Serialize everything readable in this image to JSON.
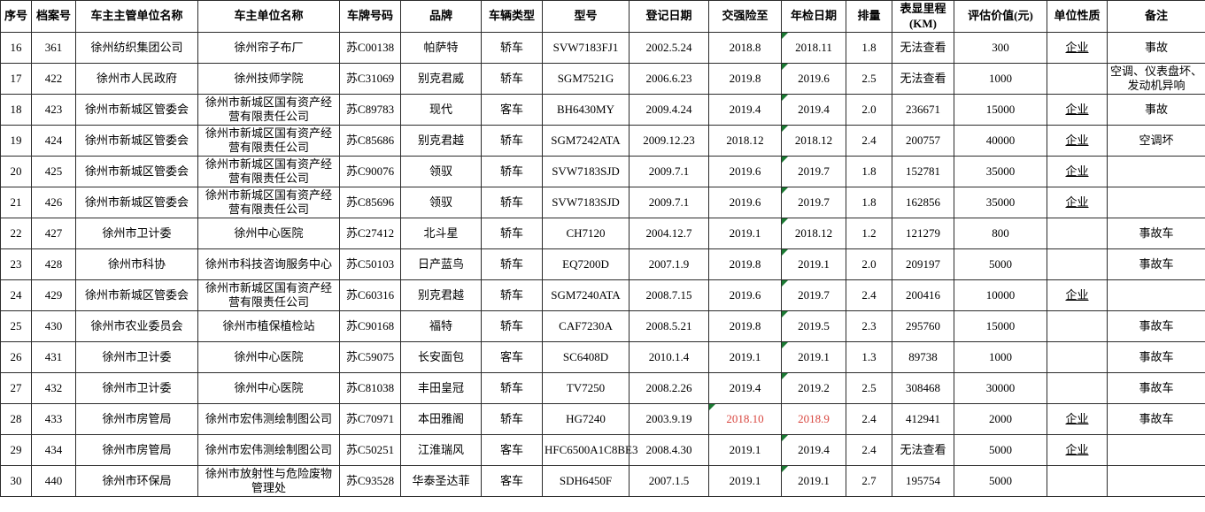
{
  "table": {
    "columns": [
      {
        "key": "seq",
        "label": "序号"
      },
      {
        "key": "file-no",
        "label": "档案号"
      },
      {
        "key": "supervisor-unit",
        "label": "车主主管单位名称"
      },
      {
        "key": "owner-unit",
        "label": "车主单位名称"
      },
      {
        "key": "plate-no",
        "label": "车牌号码"
      },
      {
        "key": "brand",
        "label": "品牌"
      },
      {
        "key": "vehicle-type",
        "label": "车辆类型"
      },
      {
        "key": "model",
        "label": "型号"
      },
      {
        "key": "register-date",
        "label": "登记日期"
      },
      {
        "key": "insurance-until",
        "label": "交强险至"
      },
      {
        "key": "inspection-date",
        "label": "年检日期"
      },
      {
        "key": "displacement",
        "label": "排量"
      },
      {
        "key": "mileage",
        "label": "表显里程\n(KM)"
      },
      {
        "key": "assessed-value",
        "label": "评估价值(元)"
      },
      {
        "key": "unit-nature",
        "label": "单位性质"
      },
      {
        "key": "remark",
        "label": "备注"
      }
    ],
    "rows": [
      [
        "16",
        "361",
        "徐州纺织集团公司",
        "徐州帘子布厂",
        "苏C00138",
        "帕萨特",
        "轿车",
        "SVW7183FJ1",
        "2002.5.24",
        "2018.8",
        "2018.11",
        "1.8",
        "无法查看",
        "300",
        "企业",
        "事故"
      ],
      [
        "17",
        "422",
        "徐州市人民政府",
        "徐州技师学院",
        "苏C31069",
        "别克君威",
        "轿车",
        "SGM7521G",
        "2006.6.23",
        "2019.8",
        "2019.6",
        "2.5",
        "无法查看",
        "1000",
        "",
        "空调、仪表盘坏、发动机异响"
      ],
      [
        "18",
        "423",
        "徐州市新城区管委会",
        "徐州市新城区国有资产经营有限责任公司",
        "苏C89783",
        "现代",
        "客车",
        "BH6430MY",
        "2009.4.24",
        "2019.4",
        "2019.4",
        "2.0",
        "236671",
        "15000",
        "企业",
        "事故"
      ],
      [
        "19",
        "424",
        "徐州市新城区管委会",
        "徐州市新城区国有资产经营有限责任公司",
        "苏C85686",
        "别克君越",
        "轿车",
        "SGM7242ATA",
        "2009.12.23",
        "2018.12",
        "2018.12",
        "2.4",
        "200757",
        "40000",
        "企业",
        "空调坏"
      ],
      [
        "20",
        "425",
        "徐州市新城区管委会",
        "徐州市新城区国有资产经营有限责任公司",
        "苏C90076",
        "领驭",
        "轿车",
        "SVW7183SJD",
        "2009.7.1",
        "2019.6",
        "2019.7",
        "1.8",
        "152781",
        "35000",
        "企业",
        ""
      ],
      [
        "21",
        "426",
        "徐州市新城区管委会",
        "徐州市新城区国有资产经营有限责任公司",
        "苏C85696",
        "领驭",
        "轿车",
        "SVW7183SJD",
        "2009.7.1",
        "2019.6",
        "2019.7",
        "1.8",
        "162856",
        "35000",
        "企业",
        ""
      ],
      [
        "22",
        "427",
        "徐州市卫计委",
        "徐州中心医院",
        "苏C27412",
        "北斗星",
        "轿车",
        "CH7120",
        "2004.12.7",
        "2019.1",
        "2018.12",
        "1.2",
        "121279",
        "800",
        "",
        "事故车"
      ],
      [
        "23",
        "428",
        "徐州市科协",
        "徐州市科技咨询服务中心",
        "苏C50103",
        "日产蓝鸟",
        "轿车",
        "EQ7200D",
        "2007.1.9",
        "2019.8",
        "2019.1",
        "2.0",
        "209197",
        "5000",
        "",
        "事故车"
      ],
      [
        "24",
        "429",
        "徐州市新城区管委会",
        "徐州市新城区国有资产经营有限责任公司",
        "苏C60316",
        "别克君越",
        "轿车",
        "SGM7240ATA",
        "2008.7.15",
        "2019.6",
        "2019.7",
        "2.4",
        "200416",
        "10000",
        "企业",
        ""
      ],
      [
        "25",
        "430",
        "徐州市农业委员会",
        "徐州市植保植检站",
        "苏C90168",
        "福特",
        "轿车",
        "CAF7230A",
        "2008.5.21",
        "2019.8",
        "2019.5",
        "2.3",
        "295760",
        "15000",
        "",
        "事故车"
      ],
      [
        "26",
        "431",
        "徐州市卫计委",
        "徐州中心医院",
        "苏C59075",
        "长安面包",
        "客车",
        "SC6408D",
        "2010.1.4",
        "2019.1",
        "2019.1",
        "1.3",
        "89738",
        "1000",
        "",
        "事故车"
      ],
      [
        "27",
        "432",
        "徐州市卫计委",
        "徐州中心医院",
        "苏C81038",
        "丰田皇冠",
        "轿车",
        "TV7250",
        "2008.2.26",
        "2019.4",
        "2019.2",
        "2.5",
        "308468",
        "30000",
        "",
        "事故车"
      ],
      [
        "28",
        "433",
        "徐州市房管局",
        "徐州市宏伟测绘制图公司",
        "苏C70971",
        "本田雅阁",
        "轿车",
        "HG7240",
        "2003.9.19",
        "2018.10",
        "2018.9",
        "2.4",
        "412941",
        "2000",
        "企业",
        "事故车"
      ],
      [
        "29",
        "434",
        "徐州市房管局",
        "徐州市宏伟测绘制图公司",
        "苏C50251",
        "江淮瑞风",
        "客车",
        "HFC6500A1C8BE3",
        "2008.4.30",
        "2019.1",
        "2019.4",
        "2.4",
        "无法查看",
        "5000",
        "企业",
        ""
      ],
      [
        "30",
        "440",
        "徐州市环保局",
        "徐州市放射性与危险废物管理处",
        "苏C93528",
        "华泰圣达菲",
        "客车",
        "SDH6450F",
        "2007.1.5",
        "2019.1",
        "2019.1",
        "2.7",
        "195754",
        "5000",
        "",
        ""
      ]
    ],
    "styles": {
      "red_text_color": "#d8453e",
      "indicator_triangle_color": "#1b7a33",
      "red_cells": [
        [
          12,
          9
        ],
        [
          12,
          10
        ]
      ],
      "green_triangle_cells": [
        [
          0,
          10
        ],
        [
          1,
          10
        ],
        [
          2,
          10
        ],
        [
          3,
          10
        ],
        [
          4,
          10
        ],
        [
          5,
          10
        ],
        [
          6,
          10
        ],
        [
          7,
          10
        ],
        [
          8,
          10
        ],
        [
          9,
          10
        ],
        [
          10,
          10
        ],
        [
          11,
          10
        ],
        [
          12,
          9
        ],
        [
          13,
          10
        ],
        [
          14,
          10
        ]
      ],
      "underline_column": 14,
      "dashed_page_break_after_row": 8
    }
  }
}
